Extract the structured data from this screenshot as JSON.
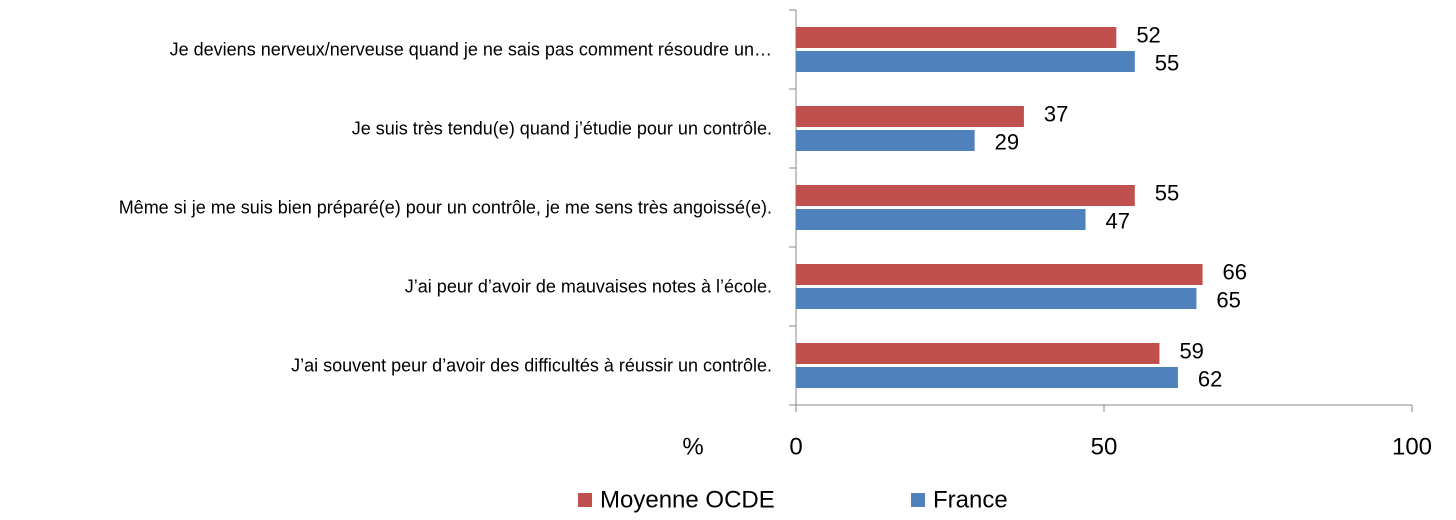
{
  "chart_data": {
    "type": "hbar",
    "categories": [
      "Je deviens nerveux/nerveuse quand je ne sais pas comment résoudre un…",
      "Je suis très tendu(e) quand j’étudie pour un contrôle.",
      "Même si je me suis bien préparé(e) pour un contrôle, je me sens très angoissé(e).",
      "J’ai peur d’avoir de mauvaises notes à l’école.",
      "J’ai souvent peur d’avoir des difficultés à réussir un contrôle."
    ],
    "series": [
      {
        "name": "Moyenne OCDE",
        "color": "#c0504d",
        "values": [
          52,
          37,
          55,
          66,
          59
        ]
      },
      {
        "name": "France",
        "color": "#4f81bd",
        "values": [
          55,
          29,
          47,
          65,
          62
        ]
      }
    ],
    "x_label": "%",
    "xlim": [
      0,
      100
    ],
    "xticks": [
      0,
      50,
      100
    ],
    "legend": "bottom"
  }
}
